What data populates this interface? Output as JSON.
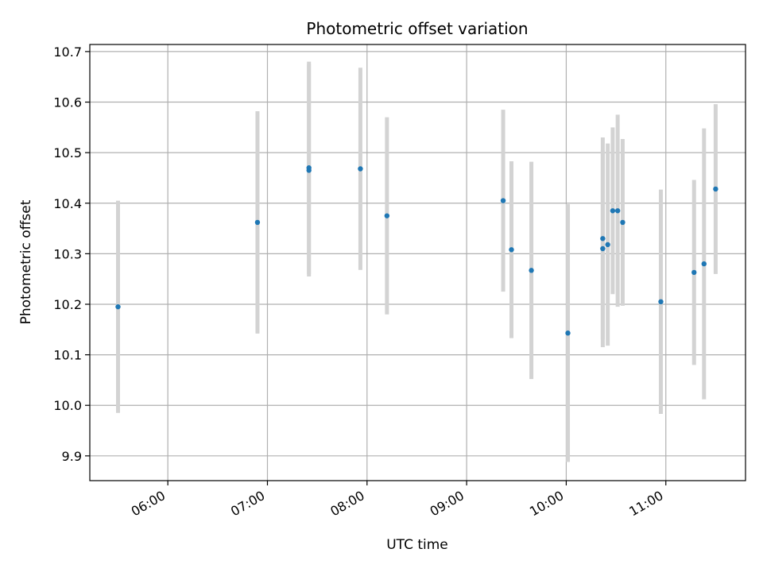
{
  "chart_data": {
    "type": "scatter",
    "title": "Photometric offset variation",
    "xlabel": "UTC time",
    "ylabel": "Photometric offset",
    "x_ticks": [
      "06:00",
      "07:00",
      "08:00",
      "09:00",
      "10:00",
      "11:00"
    ],
    "y_ticks": [
      "9.9",
      "10.0",
      "10.1",
      "10.2",
      "10.3",
      "10.4",
      "10.5",
      "10.6",
      "10.7"
    ],
    "xlim": [
      "05:13",
      "11:48"
    ],
    "ylim": [
      9.851,
      10.714
    ],
    "grid": true,
    "colors": {
      "points": "#1f77b4",
      "errorbars": "#d3d3d3",
      "grid": "#b0b0b0"
    },
    "points": [
      {
        "time": "05:30",
        "value": 10.195,
        "error": 0.21
      },
      {
        "time": "06:54",
        "value": 10.362,
        "error": 0.22
      },
      {
        "time": "07:25",
        "value": 10.47,
        "error": 0.21
      },
      {
        "time": "07:25",
        "value": 10.465,
        "error": 0.21
      },
      {
        "time": "07:56",
        "value": 10.468,
        "error": 0.2
      },
      {
        "time": "08:12",
        "value": 10.375,
        "error": 0.195
      },
      {
        "time": "09:22",
        "value": 10.405,
        "error": 0.18
      },
      {
        "time": "09:27",
        "value": 10.308,
        "error": 0.175
      },
      {
        "time": "09:39",
        "value": 10.267,
        "error": 0.215
      },
      {
        "time": "10:01",
        "value": 10.143,
        "error": 0.255
      },
      {
        "time": "10:22",
        "value": 10.31,
        "error": 0.195
      },
      {
        "time": "10:22",
        "value": 10.33,
        "error": 0.2
      },
      {
        "time": "10:25",
        "value": 10.318,
        "error": 0.2
      },
      {
        "time": "10:28",
        "value": 10.385,
        "error": 0.165
      },
      {
        "time": "10:31",
        "value": 10.385,
        "error": 0.19
      },
      {
        "time": "10:34",
        "value": 10.362,
        "error": 0.165
      },
      {
        "time": "10:57",
        "value": 10.205,
        "error": 0.222
      },
      {
        "time": "11:17",
        "value": 10.263,
        "error": 0.183
      },
      {
        "time": "11:23",
        "value": 10.28,
        "error": 0.268
      },
      {
        "time": "11:30",
        "value": 10.428,
        "error": 0.168
      }
    ]
  }
}
